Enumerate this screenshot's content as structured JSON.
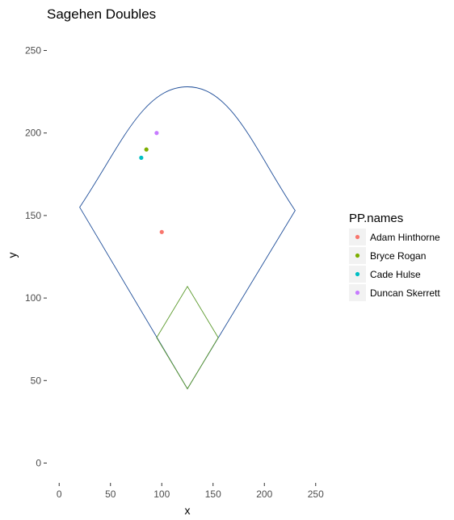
{
  "chart_data": {
    "type": "scatter",
    "title": "Sagehen Doubles",
    "xlabel": "x",
    "ylabel": "y",
    "xlim": [
      -12,
      262
    ],
    "ylim": [
      -12,
      262
    ],
    "x_ticks": [
      0,
      50,
      100,
      150,
      200,
      250
    ],
    "y_ticks": [
      0,
      50,
      100,
      150,
      200,
      250
    ],
    "grid": false,
    "legend": {
      "title": "PP.names",
      "placement": "right"
    },
    "series": [
      {
        "name": "Adam Hinthorne",
        "color": "#F8766D",
        "points": [
          [
            100,
            140
          ]
        ]
      },
      {
        "name": "Bryce Rogan",
        "color": "#7CAE00",
        "points": [
          [
            85,
            190
          ]
        ]
      },
      {
        "name": "Cade Hulse",
        "color": "#00BFC4",
        "points": [
          [
            80,
            185
          ]
        ]
      },
      {
        "name": "Duncan Skerrett",
        "color": "#C77CFF",
        "points": [
          [
            95,
            200
          ]
        ]
      }
    ],
    "field_outline": {
      "color": "#1f4e99",
      "home": [
        125,
        45
      ],
      "left_corner": [
        20,
        155
      ],
      "right_corner": [
        230,
        153
      ],
      "arc_peak": [
        125,
        228
      ]
    },
    "infield": {
      "color": "#5b9a2c",
      "points": [
        [
          125,
          45
        ],
        [
          155,
          76
        ],
        [
          125,
          107
        ],
        [
          95,
          76
        ]
      ]
    }
  }
}
